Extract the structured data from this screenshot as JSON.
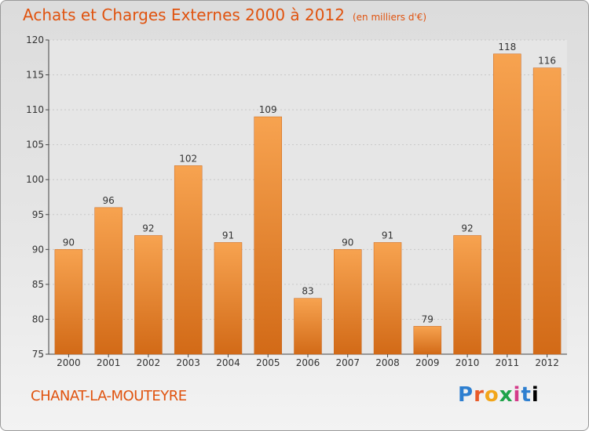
{
  "title": "Achats et Charges Externes 2000 à 2012",
  "subtitle": "(en milliers d'€)",
  "place": "CHANAT-LA-MOUTEYRE",
  "logo": {
    "text": "Proxiti"
  },
  "colors": {
    "title": "#E0530F",
    "bar_light": "#F7A350",
    "bar_dark": "#D26A17"
  },
  "chart_data": {
    "type": "bar",
    "categories": [
      "2000",
      "2001",
      "2002",
      "2003",
      "2004",
      "2005",
      "2006",
      "2007",
      "2008",
      "2009",
      "2010",
      "2011",
      "2012"
    ],
    "values": [
      90,
      96,
      92,
      102,
      91,
      109,
      83,
      90,
      91,
      79,
      92,
      118,
      116
    ],
    "data_labels": [
      "90",
      "96",
      "92",
      "102",
      "91",
      "109",
      "83",
      "90",
      "91",
      "79",
      "92",
      "118",
      "116"
    ],
    "ylim": [
      75,
      120
    ],
    "yticks": [
      75,
      80,
      85,
      90,
      95,
      100,
      105,
      110,
      115,
      120
    ],
    "grid": true
  }
}
